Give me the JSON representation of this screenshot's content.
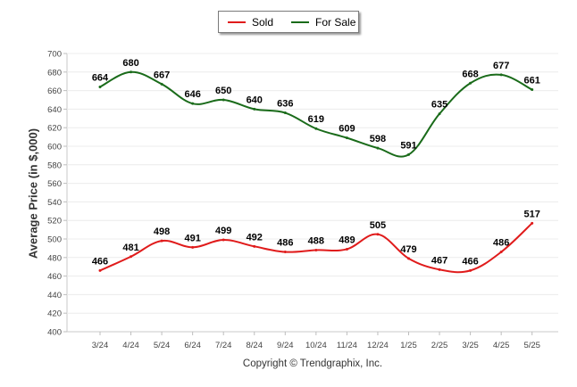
{
  "chart_data": {
    "type": "line",
    "categories": [
      "3/24",
      "4/24",
      "5/24",
      "6/24",
      "7/24",
      "8/24",
      "9/24",
      "10/24",
      "11/24",
      "12/24",
      "1/25",
      "2/25",
      "3/25",
      "4/25",
      "5/25"
    ],
    "series": [
      {
        "name": "Sold",
        "color": "#e01b1b",
        "values": [
          466,
          481,
          498,
          491,
          499,
          492,
          486,
          488,
          489,
          505,
          479,
          467,
          466,
          486,
          517
        ]
      },
      {
        "name": "For Sale",
        "color": "#1a6b1a",
        "values": [
          664,
          680,
          667,
          646,
          650,
          640,
          636,
          619,
          609,
          598,
          591,
          635,
          668,
          677,
          661
        ]
      }
    ],
    "ylabel": "Average Price (in $,000)",
    "ylim": [
      400,
      700
    ],
    "yticks": [
      400,
      420,
      440,
      460,
      480,
      500,
      520,
      540,
      560,
      580,
      600,
      620,
      640,
      660,
      680,
      700
    ],
    "grid": true,
    "legend_position": "top-center"
  },
  "footer": {
    "copyright": "Copyright © Trendgraphix, Inc."
  }
}
